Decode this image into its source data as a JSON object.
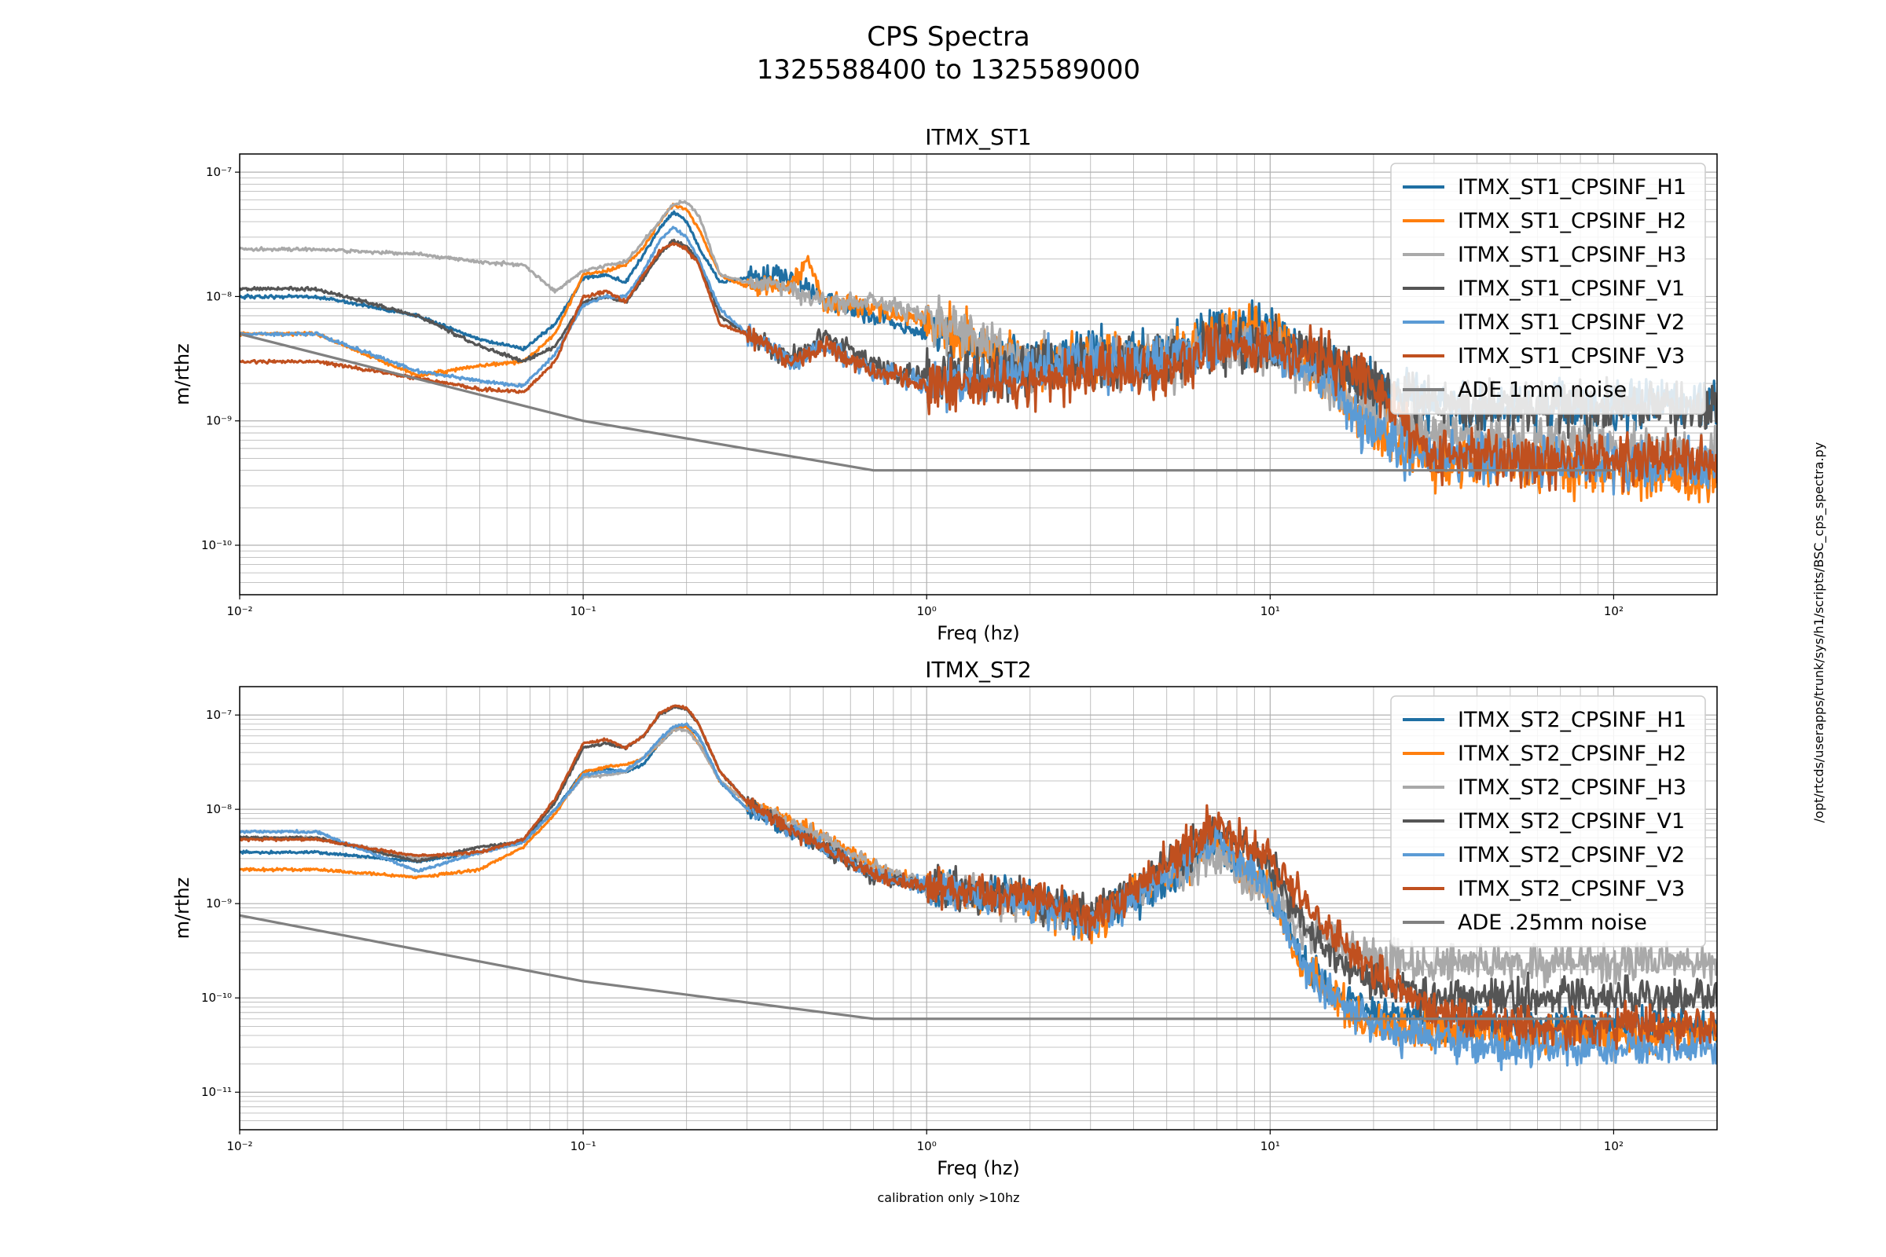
{
  "figure": {
    "suptitle_line1": "CPS Spectra",
    "suptitle_line2": "1325588400 to 1325589000",
    "side_text": "/opt/rtcds/userapps/trunk/sys/h1/scripts/BSC_cps_spectra.py",
    "footer": "calibration only >10hz"
  },
  "colors": {
    "H1": "#1f6fa3",
    "H2": "#ff7f0e",
    "H3": "#a9a9a9",
    "V1": "#555555",
    "V2": "#5b9bd5",
    "V3": "#c0501f",
    "ADE": "#808080"
  },
  "chart_data": [
    {
      "type": "line",
      "title": "ITMX_ST1",
      "xlabel": "Freq (hz)",
      "ylabel": "m/rthz",
      "xscale": "log",
      "yscale": "log",
      "xlim": [
        0.01,
        200
      ],
      "ylim": [
        4e-11,
        1.4e-07
      ],
      "xticks": [
        {
          "v": 0.01,
          "t": "10⁻²"
        },
        {
          "v": 0.1,
          "t": "10⁻¹"
        },
        {
          "v": 1,
          "t": "10⁰"
        },
        {
          "v": 10,
          "t": "10¹"
        },
        {
          "v": 100,
          "t": "10²"
        }
      ],
      "yticks": [
        {
          "v": 1e-10,
          "t": "10⁻¹⁰"
        },
        {
          "v": 1e-09,
          "t": "10⁻⁹"
        },
        {
          "v": 1e-08,
          "t": "10⁻⁸"
        },
        {
          "v": 1e-07,
          "t": "10⁻⁷"
        }
      ],
      "grid": true,
      "legend_position": "upper right",
      "series": [
        {
          "name": "ITMX_ST1_CPSINF_H1",
          "key": "H1",
          "noise": 0.3,
          "x": [
            0.01,
            0.0167,
            0.033,
            0.05,
            0.067,
            0.083,
            0.1,
            0.117,
            0.133,
            0.15,
            0.167,
            0.183,
            0.2,
            0.217,
            0.25,
            0.3,
            0.4,
            0.5,
            0.7,
            1,
            2,
            3,
            5,
            7,
            10,
            15,
            20,
            30,
            50,
            100,
            200
          ],
          "y": [
            1e-08,
            1e-08,
            7e-09,
            4.5e-09,
            3.8e-09,
            6e-09,
            1.4e-08,
            1.5e-08,
            1.3e-08,
            2.2e-08,
            3.5e-08,
            4.8e-08,
            4e-08,
            2.5e-08,
            1.3e-08,
            1.4e-08,
            1.5e-08,
            9e-09,
            7e-09,
            5e-09,
            3e-09,
            3.5e-09,
            3.5e-09,
            5e-09,
            5e-09,
            3e-09,
            1.8e-09,
            1.4e-09,
            1.3e-09,
            1.3e-09,
            1.3e-09
          ]
        },
        {
          "name": "ITMX_ST1_CPSINF_H2",
          "key": "H2",
          "noise": 0.3,
          "x": [
            0.01,
            0.0167,
            0.033,
            0.05,
            0.067,
            0.083,
            0.1,
            0.117,
            0.133,
            0.15,
            0.167,
            0.183,
            0.2,
            0.217,
            0.25,
            0.3,
            0.4,
            0.45,
            0.5,
            0.7,
            1,
            2,
            3,
            5,
            7,
            10,
            15,
            20,
            30,
            50,
            100,
            200
          ],
          "y": [
            5e-09,
            5e-09,
            2.3e-09,
            2.8e-09,
            3e-09,
            5e-09,
            1.5e-08,
            1.6e-08,
            1.8e-08,
            2.5e-08,
            4e-08,
            5.5e-08,
            5e-08,
            3.5e-08,
            1.5e-08,
            1.2e-08,
            1.2e-08,
            2e-08,
            9e-09,
            8e-09,
            6e-09,
            2.8e-09,
            3e-09,
            3e-09,
            5e-09,
            5e-09,
            2e-09,
            8e-10,
            5e-10,
            4.5e-10,
            4e-10,
            3.5e-10
          ]
        },
        {
          "name": "ITMX_ST1_CPSINF_H3",
          "key": "H3",
          "noise": 0.3,
          "x": [
            0.01,
            0.0167,
            0.033,
            0.05,
            0.067,
            0.083,
            0.1,
            0.117,
            0.133,
            0.15,
            0.167,
            0.183,
            0.2,
            0.217,
            0.25,
            0.3,
            0.4,
            0.5,
            0.7,
            1,
            2,
            3,
            5,
            7,
            10,
            15,
            20,
            30,
            50,
            100,
            200
          ],
          "y": [
            2.4e-08,
            2.4e-08,
            2.2e-08,
            1.9e-08,
            1.8e-08,
            1.1e-08,
            1.6e-08,
            1.8e-08,
            1.9e-08,
            2.8e-08,
            4e-08,
            5.5e-08,
            5.8e-08,
            4.5e-08,
            1.5e-08,
            1.3e-08,
            1.2e-08,
            9e-09,
            9e-09,
            7e-09,
            3e-09,
            3e-09,
            3e-09,
            4e-09,
            4e-09,
            2e-09,
            1.2e-09,
            8e-10,
            7e-10,
            6e-10,
            5.5e-10
          ]
        },
        {
          "name": "ITMX_ST1_CPSINF_V1",
          "key": "V1",
          "noise": 0.3,
          "x": [
            0.01,
            0.0167,
            0.033,
            0.05,
            0.067,
            0.083,
            0.1,
            0.117,
            0.133,
            0.15,
            0.167,
            0.183,
            0.2,
            0.217,
            0.25,
            0.3,
            0.4,
            0.5,
            0.7,
            1,
            2,
            3,
            5,
            7,
            10,
            15,
            20,
            30,
            50,
            100,
            200
          ],
          "y": [
            1.15e-08,
            1.15e-08,
            7e-09,
            4e-09,
            3e-09,
            4e-09,
            9e-09,
            1e-08,
            9e-09,
            1.4e-08,
            2.2e-08,
            2.8e-08,
            2.5e-08,
            2e-08,
            7e-09,
            5e-09,
            3e-09,
            5e-09,
            2.8e-09,
            2.2e-09,
            2.5e-09,
            3e-09,
            3e-09,
            4e-09,
            4e-09,
            3e-09,
            1.8e-09,
            1.4e-09,
            1.3e-09,
            1.3e-09,
            1.3e-09
          ]
        },
        {
          "name": "ITMX_ST1_CPSINF_V2",
          "key": "V2",
          "noise": 0.3,
          "x": [
            0.01,
            0.0167,
            0.033,
            0.05,
            0.067,
            0.083,
            0.1,
            0.117,
            0.133,
            0.15,
            0.167,
            0.183,
            0.2,
            0.217,
            0.25,
            0.3,
            0.4,
            0.5,
            0.7,
            1,
            2,
            3,
            5,
            7,
            10,
            15,
            20,
            30,
            50,
            100,
            200
          ],
          "y": [
            5e-09,
            5e-09,
            2.5e-09,
            2.1e-09,
            1.9e-09,
            3.5e-09,
            8.5e-09,
            1e-08,
            1e-08,
            1.6e-08,
            2.8e-08,
            3.6e-08,
            3e-08,
            2e-08,
            8e-09,
            5e-09,
            3e-09,
            4e-09,
            2.5e-09,
            2e-09,
            2.5e-09,
            3e-09,
            3e-09,
            4e-09,
            4e-09,
            2e-09,
            8e-10,
            5e-10,
            4.5e-10,
            4.5e-10,
            4.5e-10
          ]
        },
        {
          "name": "ITMX_ST1_CPSINF_V3",
          "key": "V3",
          "noise": 0.3,
          "x": [
            0.01,
            0.0167,
            0.033,
            0.05,
            0.067,
            0.083,
            0.1,
            0.117,
            0.133,
            0.15,
            0.167,
            0.183,
            0.2,
            0.217,
            0.25,
            0.3,
            0.4,
            0.5,
            0.7,
            1,
            2,
            3,
            5,
            7,
            10,
            15,
            20,
            30,
            50,
            100,
            200
          ],
          "y": [
            3e-09,
            3e-09,
            2.2e-09,
            1.8e-09,
            1.7e-09,
            3e-09,
            1e-08,
            1.1e-08,
            9e-09,
            1.5e-08,
            2.3e-08,
            2.7e-08,
            2.4e-08,
            1.8e-08,
            6e-09,
            5e-09,
            3e-09,
            4e-09,
            2.5e-09,
            2e-09,
            2e-09,
            2.5e-09,
            2.5e-09,
            4e-09,
            4e-09,
            3e-09,
            2e-09,
            5e-10,
            5e-10,
            5e-10,
            5e-10
          ]
        },
        {
          "name": "ADE 1mm noise",
          "key": "ADE",
          "noise": 0,
          "x": [
            0.01,
            0.1,
            0.7,
            100
          ],
          "y": [
            5e-09,
            1e-09,
            4e-10,
            4e-10
          ]
        }
      ]
    },
    {
      "type": "line",
      "title": "ITMX_ST2",
      "xlabel": "Freq (hz)",
      "ylabel": "m/rthz",
      "xscale": "log",
      "yscale": "log",
      "xlim": [
        0.01,
        200
      ],
      "ylim": [
        4e-12,
        2e-07
      ],
      "xticks": [
        {
          "v": 0.01,
          "t": "10⁻²"
        },
        {
          "v": 0.1,
          "t": "10⁻¹"
        },
        {
          "v": 1,
          "t": "10⁰"
        },
        {
          "v": 10,
          "t": "10¹"
        },
        {
          "v": 100,
          "t": "10²"
        }
      ],
      "yticks": [
        {
          "v": 1e-11,
          "t": "10⁻¹¹"
        },
        {
          "v": 1e-10,
          "t": "10⁻¹⁰"
        },
        {
          "v": 1e-09,
          "t": "10⁻⁹"
        },
        {
          "v": 1e-08,
          "t": "10⁻⁸"
        },
        {
          "v": 1e-07,
          "t": "10⁻⁷"
        }
      ],
      "grid": true,
      "legend_position": "upper right",
      "series": [
        {
          "name": "ITMX_ST2_CPSINF_H1",
          "key": "H1",
          "noise": 0.3,
          "x": [
            0.01,
            0.0167,
            0.033,
            0.05,
            0.067,
            0.083,
            0.1,
            0.117,
            0.133,
            0.15,
            0.167,
            0.183,
            0.2,
            0.217,
            0.25,
            0.3,
            0.4,
            0.5,
            0.7,
            1,
            2,
            3,
            5,
            7,
            10,
            12,
            15,
            20,
            30,
            50,
            100,
            200
          ],
          "y": [
            3.5e-09,
            3.5e-09,
            2.8e-09,
            3.5e-09,
            4.5e-09,
            1e-08,
            2.5e-08,
            2.7e-08,
            2.5e-08,
            3e-08,
            5e-08,
            7e-08,
            8e-08,
            6e-08,
            2e-08,
            1e-08,
            6e-09,
            4e-09,
            2e-09,
            1.5e-09,
            1.2e-09,
            7e-10,
            1.5e-09,
            4e-09,
            1.5e-09,
            3e-10,
            1.2e-10,
            7e-11,
            6e-11,
            5e-11,
            5e-11,
            5e-11
          ]
        },
        {
          "name": "ITMX_ST2_CPSINF_H2",
          "key": "H2",
          "noise": 0.3,
          "x": [
            0.01,
            0.0167,
            0.033,
            0.05,
            0.067,
            0.083,
            0.1,
            0.117,
            0.133,
            0.15,
            0.167,
            0.183,
            0.2,
            0.217,
            0.25,
            0.3,
            0.4,
            0.5,
            0.7,
            1,
            2,
            3,
            5,
            7,
            10,
            12,
            15,
            20,
            30,
            50,
            100,
            200
          ],
          "y": [
            2.3e-09,
            2.3e-09,
            1.9e-09,
            2.3e-09,
            4e-09,
            9e-09,
            2.5e-08,
            2.8e-08,
            3e-08,
            3.5e-08,
            5e-08,
            7e-08,
            7.5e-08,
            5e-08,
            2e-08,
            1.2e-08,
            8e-09,
            5e-09,
            2.5e-09,
            1.5e-09,
            1e-09,
            6e-10,
            2e-09,
            5e-09,
            1.2e-09,
            2.5e-10,
            1e-10,
            5e-11,
            4.5e-11,
            4e-11,
            4e-11,
            4e-11
          ]
        },
        {
          "name": "ITMX_ST2_CPSINF_H3",
          "key": "H3",
          "noise": 0.3,
          "x": [
            0.01,
            0.0167,
            0.033,
            0.05,
            0.067,
            0.083,
            0.1,
            0.117,
            0.133,
            0.15,
            0.167,
            0.183,
            0.2,
            0.217,
            0.25,
            0.3,
            0.4,
            0.5,
            0.7,
            1,
            2,
            3,
            5,
            7,
            10,
            12,
            15,
            20,
            30,
            50,
            100,
            200
          ],
          "y": [
            5e-09,
            5e-09,
            3e-09,
            3.5e-09,
            4.5e-09,
            1e-08,
            2.2e-08,
            2.3e-08,
            2.5e-08,
            3.5e-08,
            5e-08,
            7e-08,
            7e-08,
            5e-08,
            2e-08,
            1.2e-08,
            7e-09,
            5e-09,
            2.5e-09,
            1.5e-09,
            1e-09,
            7e-10,
            2e-09,
            3e-09,
            1.2e-09,
            6e-10,
            4e-10,
            2.5e-10,
            2.3e-10,
            2.3e-10,
            2.3e-10,
            2.3e-10
          ]
        },
        {
          "name": "ITMX_ST2_CPSINF_V1",
          "key": "V1",
          "noise": 0.3,
          "x": [
            0.01,
            0.0167,
            0.033,
            0.05,
            0.067,
            0.083,
            0.1,
            0.117,
            0.133,
            0.15,
            0.167,
            0.183,
            0.2,
            0.217,
            0.25,
            0.3,
            0.4,
            0.5,
            0.7,
            1,
            2,
            3,
            5,
            7,
            10,
            12,
            15,
            20,
            30,
            50,
            100,
            200
          ],
          "y": [
            5e-09,
            5e-09,
            2.8e-09,
            4e-09,
            4.5e-09,
            1.2e-08,
            4.5e-08,
            5e-08,
            4.5e-08,
            6e-08,
            1e-07,
            1.2e-07,
            1.15e-07,
            8e-08,
            2.5e-08,
            1.2e-08,
            6e-09,
            4e-09,
            2e-09,
            1.5e-09,
            1.1e-09,
            7e-10,
            2.5e-09,
            6e-09,
            2.5e-09,
            8e-10,
            3e-10,
            1.5e-10,
            1e-10,
            1e-10,
            1e-10,
            1e-10
          ]
        },
        {
          "name": "ITMX_ST2_CPSINF_V2",
          "key": "V2",
          "noise": 0.3,
          "x": [
            0.01,
            0.0167,
            0.033,
            0.05,
            0.067,
            0.083,
            0.1,
            0.117,
            0.133,
            0.15,
            0.167,
            0.183,
            0.2,
            0.217,
            0.25,
            0.3,
            0.4,
            0.5,
            0.7,
            1,
            2,
            3,
            5,
            7,
            10,
            12,
            15,
            20,
            30,
            50,
            100,
            200
          ],
          "y": [
            5.8e-09,
            5.8e-09,
            2.2e-09,
            3.5e-09,
            4.5e-09,
            1e-08,
            2.3e-08,
            2.5e-08,
            2.6e-08,
            3.5e-08,
            5.5e-08,
            7.5e-08,
            8e-08,
            6e-08,
            2e-08,
            1e-08,
            6e-09,
            4e-09,
            2e-09,
            1.5e-09,
            1e-09,
            6e-10,
            2e-09,
            5e-09,
            1.3e-09,
            3e-10,
            1e-10,
            5e-11,
            3.5e-11,
            3e-11,
            3e-11,
            3e-11
          ]
        },
        {
          "name": "ITMX_ST2_CPSINF_V3",
          "key": "V3",
          "noise": 0.3,
          "x": [
            0.01,
            0.0167,
            0.033,
            0.05,
            0.067,
            0.083,
            0.1,
            0.117,
            0.133,
            0.15,
            0.167,
            0.183,
            0.2,
            0.217,
            0.25,
            0.3,
            0.4,
            0.5,
            0.7,
            1,
            2,
            3,
            5,
            7,
            10,
            12,
            15,
            20,
            30,
            50,
            100,
            200
          ],
          "y": [
            4.8e-09,
            4.8e-09,
            3.2e-09,
            3.5e-09,
            4.8e-09,
            1.3e-08,
            5e-08,
            5.5e-08,
            4.5e-08,
            6e-08,
            1.05e-07,
            1.25e-07,
            1.2e-07,
            8e-08,
            2.5e-08,
            1.2e-08,
            6e-09,
            4e-09,
            2e-09,
            1.5e-09,
            1.2e-09,
            7e-10,
            2.5e-09,
            7e-09,
            3e-09,
            1.2e-09,
            5e-10,
            2e-10,
            7e-11,
            5e-11,
            5e-11,
            5e-11
          ]
        },
        {
          "name": "ADE .25mm noise",
          "key": "ADE",
          "noise": 0,
          "x": [
            0.01,
            0.1,
            0.7,
            100
          ],
          "y": [
            7.5e-10,
            1.5e-10,
            6e-11,
            6e-11
          ]
        }
      ]
    }
  ]
}
